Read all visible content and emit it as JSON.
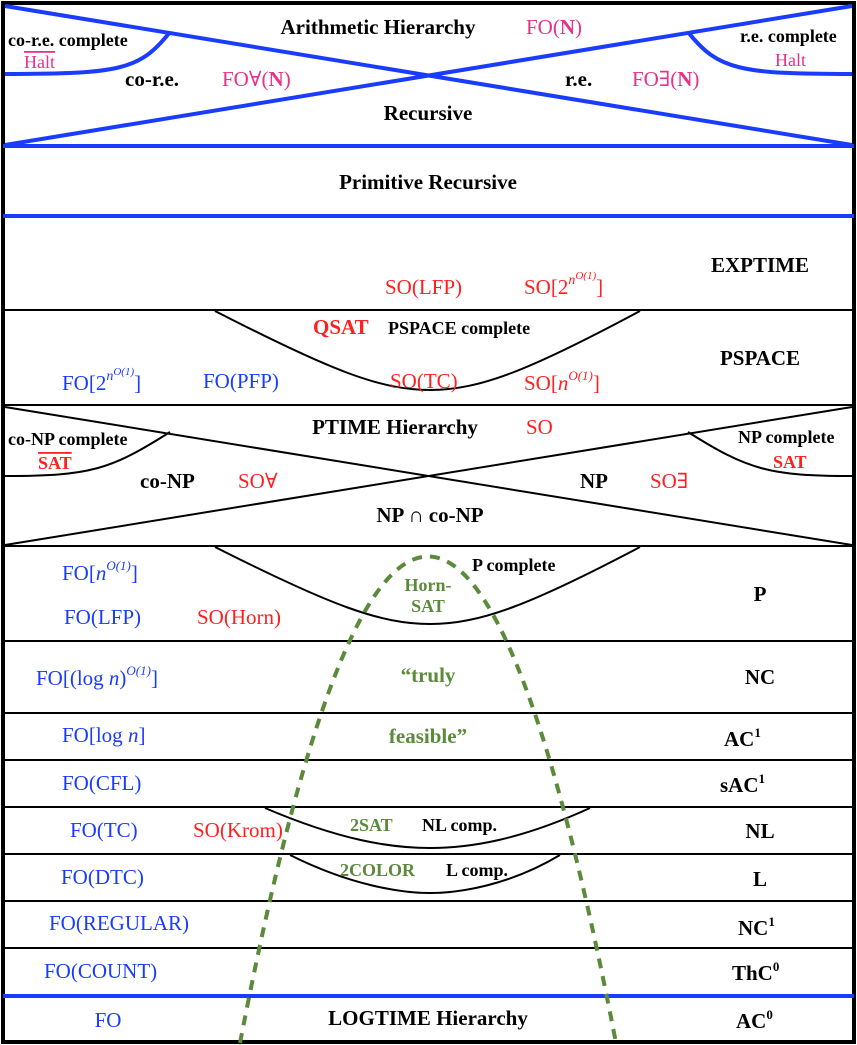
{
  "colors": {
    "blue_lines": "#1a3cff",
    "formula_blue": "#1a3cff",
    "formula_red": "#ff2020",
    "formula_pink": "#e8318a",
    "feasible_green": "#5a8a3a"
  },
  "arithmetic": {
    "title": "Arithmetic Hierarchy",
    "logic": "FO(",
    "logic_n": "N",
    "logic_close": ")",
    "core_complete": "co-r.e. complete",
    "core_complete_problem": "Halt",
    "re_complete": "r.e. complete",
    "re_complete_problem": "Halt",
    "core": "co-r.e.",
    "core_logic": "FO∀(",
    "core_logic_n": "N",
    "core_logic_close": ")",
    "re": "r.e.",
    "re_logic": "FO∃(",
    "re_logic_n": "N",
    "re_logic_close": ")",
    "recursive": "Recursive"
  },
  "primitive_recursive": "Primitive Recursive",
  "exptime": {
    "name": "EXPTIME",
    "logic1": "SO(LFP)",
    "logic2_base": "SO[2",
    "logic2_sup": "n",
    "logic2_supsup": "O(1)",
    "logic2_close": "]"
  },
  "pspace": {
    "name": "PSPACE",
    "complete": "PSPACE complete",
    "complete_problem": "QSAT",
    "fo_exp_base": "FO[2",
    "fo_exp_sup": "n",
    "fo_exp_supsup": "O(1)",
    "fo_exp_close": "]",
    "fo_pfp": "FO(PFP)",
    "so_tc": "SO(TC)",
    "so_poly_base": "SO[",
    "so_poly_n": "n",
    "so_poly_sup": "O(1)",
    "so_poly_close": "]"
  },
  "ph": {
    "name": "PTIME Hierarchy",
    "logic": "SO",
    "conp_complete": "co-NP complete",
    "conp_problem": "SAT",
    "np_complete": "NP complete",
    "np_problem": "SAT",
    "conp": "co-NP",
    "conp_logic": "SO∀",
    "np": "NP",
    "np_logic": "SO∃",
    "intersection": "NP ∩ co-NP"
  },
  "p": {
    "name": "P",
    "complete": "P complete",
    "problem_line1": "Horn-",
    "problem_line2": "SAT",
    "fo_poly_base": "FO[",
    "fo_poly_n": "n",
    "fo_poly_sup": "O(1)",
    "fo_poly_close": "]",
    "fo_lfp": "FO(LFP)",
    "so_horn": "SO(Horn)"
  },
  "feasible": {
    "line1": "“truly",
    "line2": "feasible”"
  },
  "rows": [
    {
      "name": "NC",
      "name_sup": "",
      "logic_base": "FO[(log ",
      "logic_n": "n",
      "logic_close1": ")",
      "logic_sup": "O(1)",
      "logic_close2": "]"
    },
    {
      "name": "AC",
      "name_sup": "1",
      "logic_base": "FO[log ",
      "logic_n": "n",
      "logic_close": "]"
    },
    {
      "name": "sAC",
      "name_sup": "1",
      "logic": "FO(CFL)"
    },
    {
      "name": "NL",
      "logic": "FO(TC)",
      "logic2": "SO(Krom)",
      "complete": "NL comp.",
      "problem": "2SAT"
    },
    {
      "name": "L",
      "logic": "FO(DTC)",
      "complete": "L comp.",
      "problem": "2COLOR"
    },
    {
      "name": "NC",
      "name_sup": "1",
      "logic": "FO(REGULAR)"
    },
    {
      "name": "ThC",
      "name_sup": "0",
      "logic": "FO(COUNT)"
    },
    {
      "name": "AC",
      "name_sup": "0",
      "logic": "FO",
      "hierarchy": "LOGTIME Hierarchy"
    }
  ]
}
